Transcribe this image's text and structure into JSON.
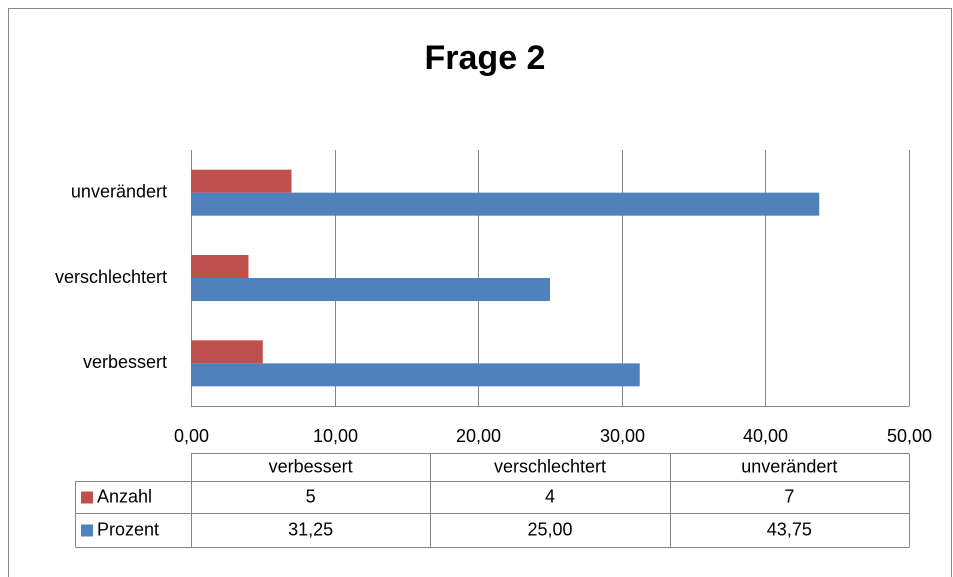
{
  "chart_data": {
    "type": "bar",
    "orientation": "horizontal",
    "title": "Frage 2",
    "categories": [
      "verbessert",
      "verschlechtert",
      "unverändert"
    ],
    "series": [
      {
        "name": "Anzahl",
        "color": "#c0504d",
        "values": [
          5,
          4,
          7
        ],
        "value_labels": [
          "5",
          "4",
          "7"
        ]
      },
      {
        "name": "Prozent",
        "color": "#4f81bd",
        "values": [
          31.25,
          25,
          43.75
        ],
        "value_labels": [
          "31,25",
          "25,00",
          "43,75"
        ]
      }
    ],
    "xlim": [
      0,
      50
    ],
    "xticks": [
      {
        "value": 0,
        "label": "0,00"
      },
      {
        "value": 10,
        "label": "10,00"
      },
      {
        "value": 20,
        "label": "20,00"
      },
      {
        "value": 30,
        "label": "30,00"
      },
      {
        "value": 40,
        "label": "40,00"
      },
      {
        "value": 50,
        "label": "50,00"
      }
    ],
    "grid": true,
    "data_table": true
  }
}
